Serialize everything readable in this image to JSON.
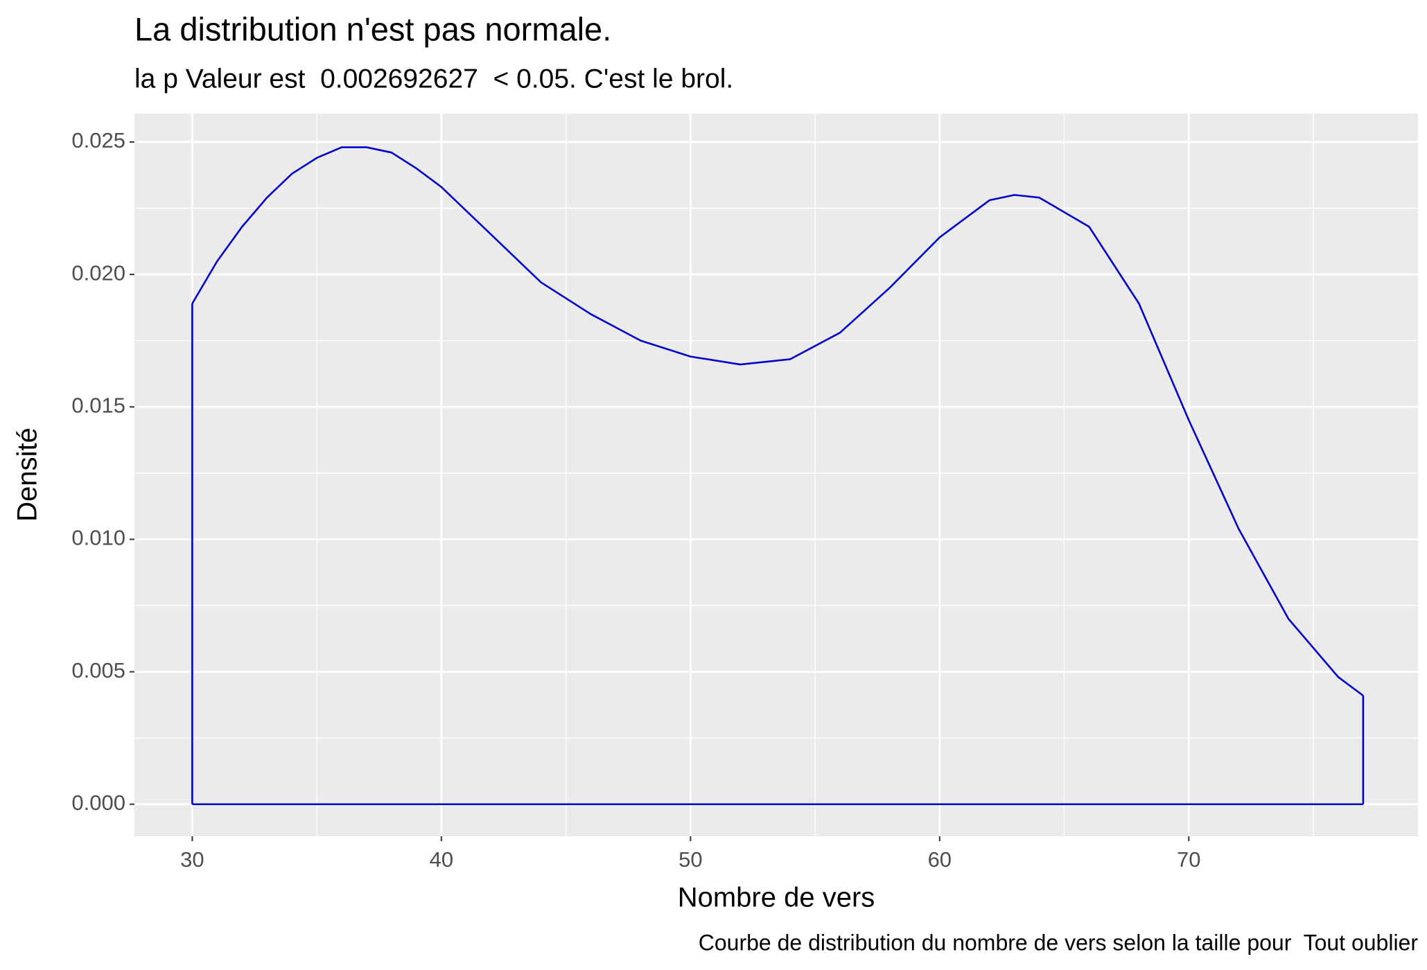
{
  "chart_data": {
    "type": "line",
    "title": "La distribution n'est pas normale.",
    "subtitle": "la p Valeur est  0.002692627  < 0.05. C'est le brol.",
    "x_label": "Nombre de vers",
    "y_label": "Densité",
    "caption": "Courbe de distribution du nombre de vers selon la taille pour  Tout oublier",
    "x": [
      30,
      31,
      32,
      33,
      34,
      35,
      36,
      37,
      38,
      39,
      40,
      42,
      44,
      46,
      48,
      50,
      52,
      54,
      56,
      58,
      60,
      62,
      63,
      64,
      66,
      68,
      70,
      72,
      74,
      76,
      77
    ],
    "series": [
      {
        "color": "#0000cd",
        "values": [
          0.0189,
          0.0205,
          0.0218,
          0.0229,
          0.0238,
          0.0244,
          0.0248,
          0.0248,
          0.0246,
          0.024,
          0.0233,
          0.0215,
          0.0197,
          0.0185,
          0.0175,
          0.0169,
          0.0166,
          0.0168,
          0.0178,
          0.0195,
          0.0214,
          0.0228,
          0.023,
          0.0229,
          0.0218,
          0.0189,
          0.0145,
          0.0104,
          0.007,
          0.0048,
          0.0041
        ]
      }
    ],
    "xlim": [
      27.68,
      79.2
    ],
    "ylim": [
      -0.00121,
      0.02607
    ],
    "xticks": [
      30,
      40,
      50,
      60,
      70
    ],
    "x_minor_ticks": [
      35,
      45,
      55,
      65,
      75
    ],
    "yticks": [
      {
        "value": 0,
        "label": "0.000"
      },
      0.005,
      {
        "value": 0.01,
        "label": "0.010"
      },
      0.015,
      {
        "value": 0.02,
        "label": "0.020"
      },
      0.025
    ],
    "y_minor_ticks": [
      0.0025,
      0.0075,
      0.0125,
      0.0175,
      0.0225
    ],
    "grid": true
  }
}
